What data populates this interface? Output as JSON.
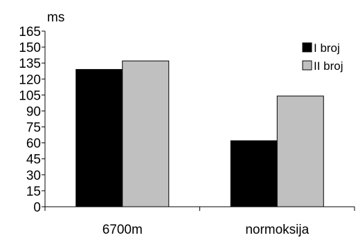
{
  "chart_data": {
    "type": "bar",
    "ylabel": "ms",
    "categories": [
      "6700m",
      "normoksija"
    ],
    "series": [
      {
        "name": "I broj",
        "values": [
          129,
          62
        ],
        "color": "#000000"
      },
      {
        "name": "II broj",
        "values": [
          137,
          104
        ],
        "color": "#c0c0c0"
      }
    ],
    "ylim": [
      0,
      165
    ],
    "yticks": [
      0,
      15,
      30,
      45,
      60,
      75,
      90,
      105,
      120,
      135,
      150,
      165
    ],
    "grid": false,
    "legend_position": "top-right"
  }
}
